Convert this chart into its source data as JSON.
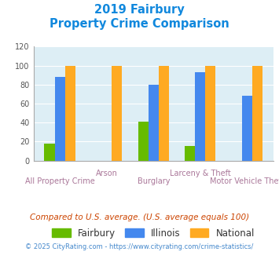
{
  "title_line1": "2019 Fairbury",
  "title_line2": "Property Crime Comparison",
  "categories": [
    "All Property Crime",
    "Arson",
    "Burglary",
    "Larceny & Theft",
    "Motor Vehicle Theft"
  ],
  "fairbury": [
    18,
    0,
    41,
    15,
    0
  ],
  "illinois": [
    88,
    0,
    80,
    93,
    68
  ],
  "national": [
    100,
    100,
    100,
    100,
    100
  ],
  "fairbury_color": "#66bb00",
  "illinois_color": "#4488ee",
  "national_color": "#ffaa22",
  "bg_color": "#ddeef5",
  "ylim": [
    0,
    120
  ],
  "yticks": [
    0,
    20,
    40,
    60,
    80,
    100,
    120
  ],
  "footnote1": "Compared to U.S. average. (U.S. average equals 100)",
  "footnote2": "© 2025 CityRating.com - https://www.cityrating.com/crime-statistics/",
  "title_color": "#1188dd",
  "xlabel_color": "#aa7799",
  "footnote1_color": "#cc4400",
  "footnote2_color": "#4488cc",
  "legend_labels": [
    "Fairbury",
    "Illinois",
    "National"
  ],
  "bar_width": 0.22
}
